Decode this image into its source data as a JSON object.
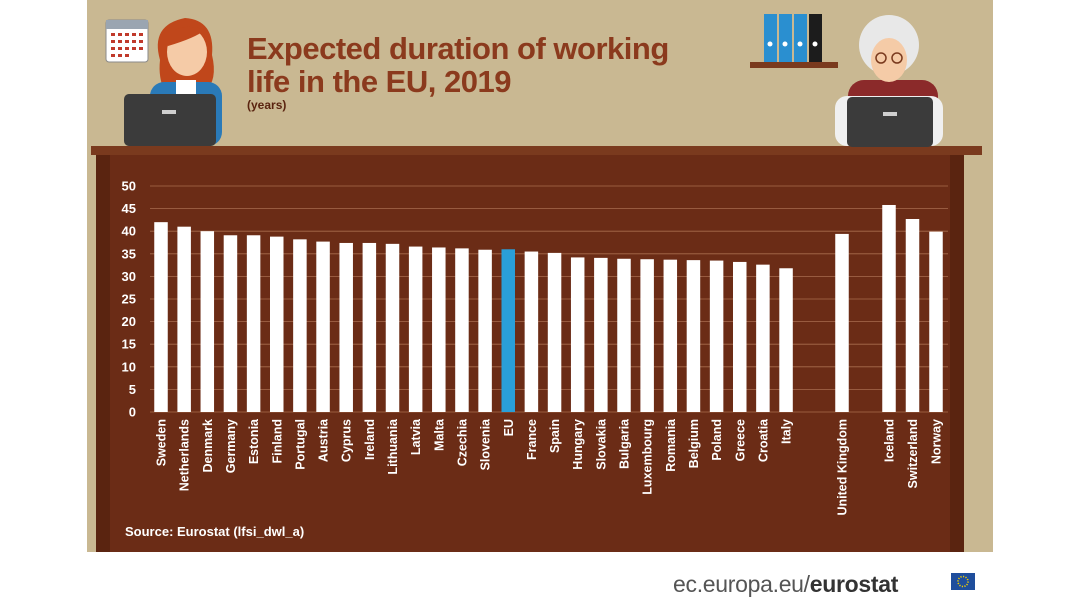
{
  "title_line1": "Expected duration of working",
  "title_line2": "life in the EU, 2019",
  "subtitle": "(years)",
  "source": "Source: Eurostat (lfsi_dwl_a)",
  "footer": {
    "domain": "ec.europa.eu/",
    "brand": "eurostat"
  },
  "colors": {
    "bar": "#ffffff",
    "highlight": "#2a9fd8",
    "desk": "#6b2c16",
    "grid": "#a86b4e",
    "background": "#c9b892"
  },
  "chart_data": {
    "type": "bar",
    "ylim": [
      0,
      50
    ],
    "yticks": [
      0,
      5,
      10,
      15,
      20,
      25,
      30,
      35,
      40,
      45,
      50
    ],
    "grid": true,
    "highlight": "EU",
    "categories": [
      "Sweden",
      "Netherlands",
      "Denmark",
      "Germany",
      "Estonia",
      "Finland",
      "Portugal",
      "Austria",
      "Cyprus",
      "Ireland",
      "Lithuania",
      "Latvia",
      "Malta",
      "Czechia",
      "Slovenia",
      "EU",
      "France",
      "Spain",
      "Hungary",
      "Slovakia",
      "Bulgaria",
      "Luxembourg",
      "Romania",
      "Belgium",
      "Poland",
      "Greece",
      "Croatia",
      "Italy",
      "United Kingdom",
      "Iceland",
      "Switzerland",
      "Norway"
    ],
    "values": [
      42.0,
      41.0,
      40.0,
      39.1,
      39.1,
      38.8,
      38.2,
      37.7,
      37.4,
      37.4,
      37.2,
      36.6,
      36.4,
      36.2,
      35.9,
      36.0,
      35.5,
      35.2,
      34.2,
      34.1,
      33.9,
      33.8,
      33.7,
      33.6,
      33.5,
      33.2,
      32.6,
      31.8,
      39.4,
      45.8,
      42.7,
      39.9
    ]
  }
}
